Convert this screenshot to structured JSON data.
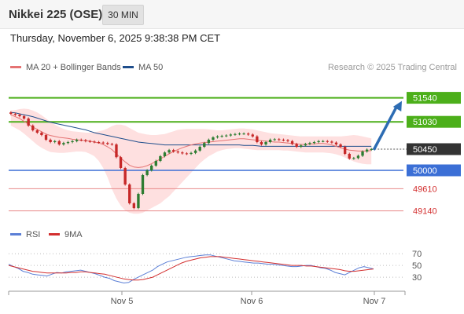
{
  "header": {
    "title": "Nikkei 225 (OSE)",
    "interval": "30 MIN"
  },
  "timestamp": "Thursday, November 6, 2025 9:38:38 PM CET",
  "legend": {
    "ma20": "MA 20 + Bollinger Bands",
    "ma50": "MA 50"
  },
  "credit": "Research © 2025 Trading Central",
  "rsi_legend": {
    "rsi": "RSI",
    "ma9": "9MA"
  },
  "colors": {
    "bull": "#2e7d32",
    "bear": "#c62828",
    "ma20": "#e57373",
    "ma50": "#1f4e8c",
    "band": "#fdd5d5",
    "resistance": "#4caf1a",
    "support": "#3b6fd6",
    "pivot_label": "#333333",
    "rsi": "#5b7fd6",
    "rsi_ma": "#d32f2f",
    "forecast": "#2d6cb3"
  },
  "chart_data": [
    {
      "type": "candlestick",
      "title": "Nikkei 225 (OSE)",
      "interval": "30 MIN",
      "ylim": [
        48900,
        51950
      ],
      "x_ticks": [
        "Nov 5",
        "Nov 6",
        "Nov 7"
      ],
      "close": [
        51200,
        51180,
        51150,
        51100,
        50950,
        50850,
        50800,
        50750,
        50650,
        50600,
        50620,
        50550,
        50580,
        50600,
        50620,
        50650,
        50640,
        50620,
        50610,
        50600,
        50590,
        50580,
        50560,
        50550,
        50280,
        50050,
        49700,
        49300,
        49200,
        49500,
        49900,
        50000,
        50100,
        50200,
        50300,
        50380,
        50430,
        50400,
        50380,
        50360,
        50350,
        50370,
        50420,
        50500,
        50580,
        50650,
        50700,
        50720,
        50730,
        50740,
        50760,
        50770,
        50780,
        50780,
        50760,
        50720,
        50600,
        50550,
        50600,
        50650,
        50660,
        50650,
        50640,
        50620,
        50560,
        50500,
        50530,
        50560,
        50580,
        50600,
        50620,
        50620,
        50610,
        50590,
        50550,
        50500,
        50350,
        50250,
        50260,
        50310,
        50400,
        50440,
        50450
      ],
      "ma20": [
        51180,
        51140,
        51100,
        51040,
        50980,
        50920,
        50870,
        50820,
        50770,
        50740,
        50720,
        50700,
        50690,
        50680,
        50660,
        50650,
        50640,
        50630,
        50620,
        50600,
        50580,
        50550,
        50500,
        50440,
        50350,
        50260,
        50180,
        50110,
        50070,
        50060,
        50070,
        50100,
        50140,
        50190,
        50240,
        50300,
        50350,
        50400,
        50440,
        50480,
        50510,
        50540,
        50560,
        50580,
        50590,
        50600,
        50610,
        50620,
        50630,
        50640,
        50650,
        50660,
        50670,
        50670,
        50660,
        50650,
        50640,
        50630,
        50620,
        50610,
        50600,
        50600,
        50590,
        50580,
        50570,
        50560,
        50550,
        50550,
        50560,
        50560,
        50570,
        50570,
        50560,
        50540,
        50510,
        50480,
        50450,
        50430,
        50420,
        50410,
        50410,
        50410,
        50420
      ],
      "bb_upper": [
        51270,
        51280,
        51300,
        51310,
        51300,
        51270,
        51230,
        51170,
        51100,
        51030,
        50970,
        50920,
        50880,
        50850,
        50830,
        50820,
        50810,
        50800,
        50800,
        50810,
        50830,
        50850,
        50890,
        50940,
        50970,
        50970,
        50950,
        50900,
        50850,
        50800,
        50780,
        50760,
        50750,
        50750,
        50760,
        50770,
        50800,
        50830,
        50860,
        50870,
        50880,
        50880,
        50880,
        50880,
        50880,
        50870,
        50860,
        50850,
        50850,
        50860,
        50870,
        50880,
        50890,
        50890,
        50880,
        50870,
        50850,
        50830,
        50810,
        50790,
        50780,
        50770,
        50760,
        50750,
        50740,
        50730,
        50720,
        50720,
        50720,
        50720,
        50720,
        50720,
        50720,
        50720,
        50720,
        50720,
        50730,
        50740,
        50750,
        50740,
        50720,
        50700,
        50680
      ],
      "bb_lower": [
        50950,
        50900,
        50850,
        50780,
        50700,
        50620,
        50540,
        50480,
        50430,
        50390,
        50380,
        50370,
        50370,
        50380,
        50390,
        50400,
        50400,
        50390,
        50350,
        50300,
        50200,
        50050,
        49850,
        49600,
        49400,
        49250,
        49150,
        49100,
        49080,
        49080,
        49100,
        49150,
        49200,
        49250,
        49300,
        49380,
        49450,
        49550,
        49650,
        49750,
        49850,
        49950,
        50050,
        50150,
        50230,
        50300,
        50350,
        50400,
        50430,
        50450,
        50460,
        50470,
        50470,
        50460,
        50450,
        50440,
        50430,
        50430,
        50430,
        50430,
        50430,
        50430,
        50420,
        50420,
        50410,
        50400,
        50390,
        50380,
        50380,
        50380,
        50380,
        50380,
        50370,
        50360,
        50340,
        50310,
        50270,
        50230,
        50190,
        50160,
        50140,
        50130,
        50130
      ],
      "ma50": [
        51230,
        51220,
        51200,
        51180,
        51160,
        51140,
        51110,
        51080,
        51050,
        51020,
        51000,
        50980,
        50960,
        50940,
        50920,
        50900,
        50880,
        50860,
        50830,
        50800,
        50780,
        50760,
        50740,
        50720,
        50700,
        50680,
        50660,
        50640,
        50620,
        50600,
        50590,
        50580,
        50570,
        50560,
        50550,
        50540,
        50540,
        50540,
        50540,
        50540,
        50540,
        50540,
        50540,
        50540,
        50540,
        50540,
        50540,
        50540,
        50540,
        50540,
        50540,
        50540,
        50540,
        50530,
        50530,
        50530,
        50520,
        50510,
        50510,
        50510,
        50510,
        50510,
        50510,
        50510,
        50510,
        50510,
        50510,
        50510,
        50510,
        50510,
        50510,
        50510,
        50510,
        50510,
        50510,
        50510,
        50510,
        50510,
        50510,
        50510,
        50510,
        50510,
        50510
      ],
      "levels": [
        {
          "value": 51540,
          "label": "51540",
          "kind": "resistance"
        },
        {
          "value": 51030,
          "label": "51030",
          "kind": "resistance"
        },
        {
          "value": 50450,
          "label": "50450",
          "kind": "pivot"
        },
        {
          "value": 50000,
          "label": "50000",
          "kind": "support"
        },
        {
          "value": 49610,
          "label": "49610",
          "kind": "minor"
        },
        {
          "value": 49140,
          "label": "49140",
          "kind": "minor"
        }
      ],
      "forecast": {
        "from": 50450,
        "to": 51540
      }
    },
    {
      "type": "line",
      "title": "RSI",
      "ylim": [
        10,
        85
      ],
      "y_ticks": [
        70,
        50,
        30
      ],
      "series": [
        {
          "name": "RSI",
          "values": [
            52,
            48,
            45,
            40,
            38,
            35,
            34,
            33,
            32,
            35,
            38,
            37,
            39,
            40,
            41,
            42,
            40,
            38,
            36,
            33,
            30,
            28,
            24,
            22,
            20,
            21,
            26,
            30,
            34,
            38,
            42,
            48,
            52,
            56,
            58,
            60,
            62,
            64,
            65,
            66,
            67,
            68,
            68,
            66,
            64,
            62,
            60,
            58,
            57,
            56,
            55,
            54,
            54,
            53,
            52,
            52,
            51,
            50,
            49,
            48,
            48,
            49,
            50,
            50,
            48,
            46,
            45,
            42,
            38,
            36,
            34,
            38,
            42,
            46,
            48,
            46,
            44
          ]
        },
        {
          "name": "9MA",
          "values": [
            50,
            48,
            46,
            44,
            42,
            40,
            39,
            38,
            37,
            37,
            37,
            37,
            37,
            38,
            38,
            39,
            39,
            38,
            37,
            36,
            35,
            33,
            31,
            29,
            27,
            26,
            25,
            25,
            26,
            28,
            30,
            34,
            38,
            42,
            46,
            50,
            54,
            57,
            59,
            61,
            63,
            64,
            65,
            65,
            65,
            64,
            63,
            62,
            61,
            60,
            59,
            58,
            57,
            56,
            55,
            54,
            53,
            52,
            51,
            50,
            50,
            50,
            49,
            49,
            48,
            47,
            46,
            45,
            44,
            43,
            41,
            40,
            40,
            41,
            42,
            43,
            44
          ]
        }
      ]
    }
  ]
}
